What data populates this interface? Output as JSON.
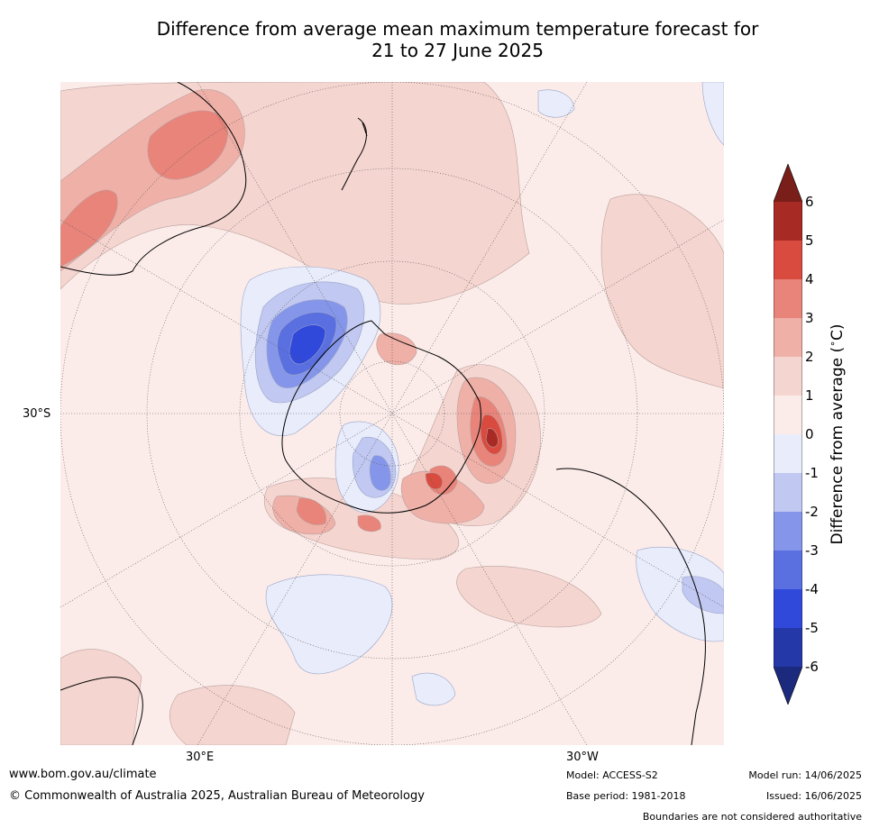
{
  "title_line1": "Difference from average mean maximum temperature forecast for",
  "title_line2": "21 to 27 June 2025",
  "map_labels": {
    "lat_30s": "30°S",
    "lon_30e": "30°E",
    "lon_30w": "30°W"
  },
  "colorbar": {
    "label": "Difference from average (∘C)",
    "label_text": "Difference from average (",
    "label_unit": "C)",
    "label_degree": "∘",
    "ticks": [
      "6",
      "5",
      "4",
      "3",
      "2",
      "1",
      "0",
      "-1",
      "-2",
      "-3",
      "-4",
      "-5",
      "-6"
    ],
    "colors": {
      "over": "#7a1e1a",
      "5_6": "#a82a24",
      "4_5": "#d94a3f",
      "3_4": "#e8847a",
      "2_3": "#efb0a8",
      "1_2": "#f5d5d0",
      "0_1": "#fbecea",
      "m1_0": "#e8ecfb",
      "m2_m1": "#c1c8f1",
      "m3_m2": "#8596ea",
      "m4_m3": "#5a6fe0",
      "m5_m4": "#3049da",
      "m6_m5": "#2538a8",
      "under": "#1c2a7e"
    }
  },
  "footer": {
    "website": "www.bom.gov.au/climate",
    "copyright": "© Commonwealth of Australia 2025, Australian Bureau of Meteorology",
    "model": "Model: ACCESS-S2",
    "base_period": "Base period: 1981-2018",
    "model_run": "Model run: 14/06/2025",
    "issued": "Issued: 16/06/2025",
    "disclaimer": "Boundaries are not considered authoritative"
  }
}
